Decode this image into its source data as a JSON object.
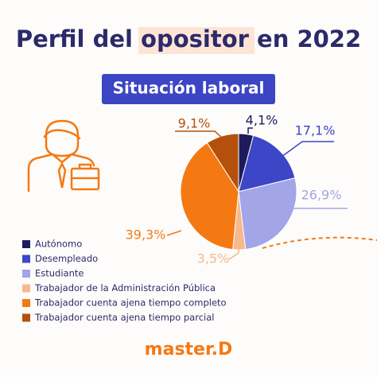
{
  "chart_data": {
    "type": "pie",
    "title": "Perfil del opositor en 2022",
    "subtitle": "Situación laboral",
    "categories": [
      "Autónomo",
      "Desempleado",
      "Estudiante",
      "Trabajador de la Administración Pública",
      "Trabajador cuenta ajena tiempo completo",
      "Trabajador cuenta ajena tiempo parcial"
    ],
    "values": [
      4.1,
      17.1,
      26.9,
      3.5,
      39.3,
      9.1
    ],
    "value_labels": [
      "4,1%",
      "17,1%",
      "26,9%",
      "3,5%",
      "39,3%",
      "9,1%"
    ],
    "colors": [
      "#1e1a5c",
      "#3d46c6",
      "#a2a5e6",
      "#f6b88c",
      "#f57913",
      "#b5500c"
    ],
    "legend": "bottom-left"
  },
  "brand": "master.D"
}
